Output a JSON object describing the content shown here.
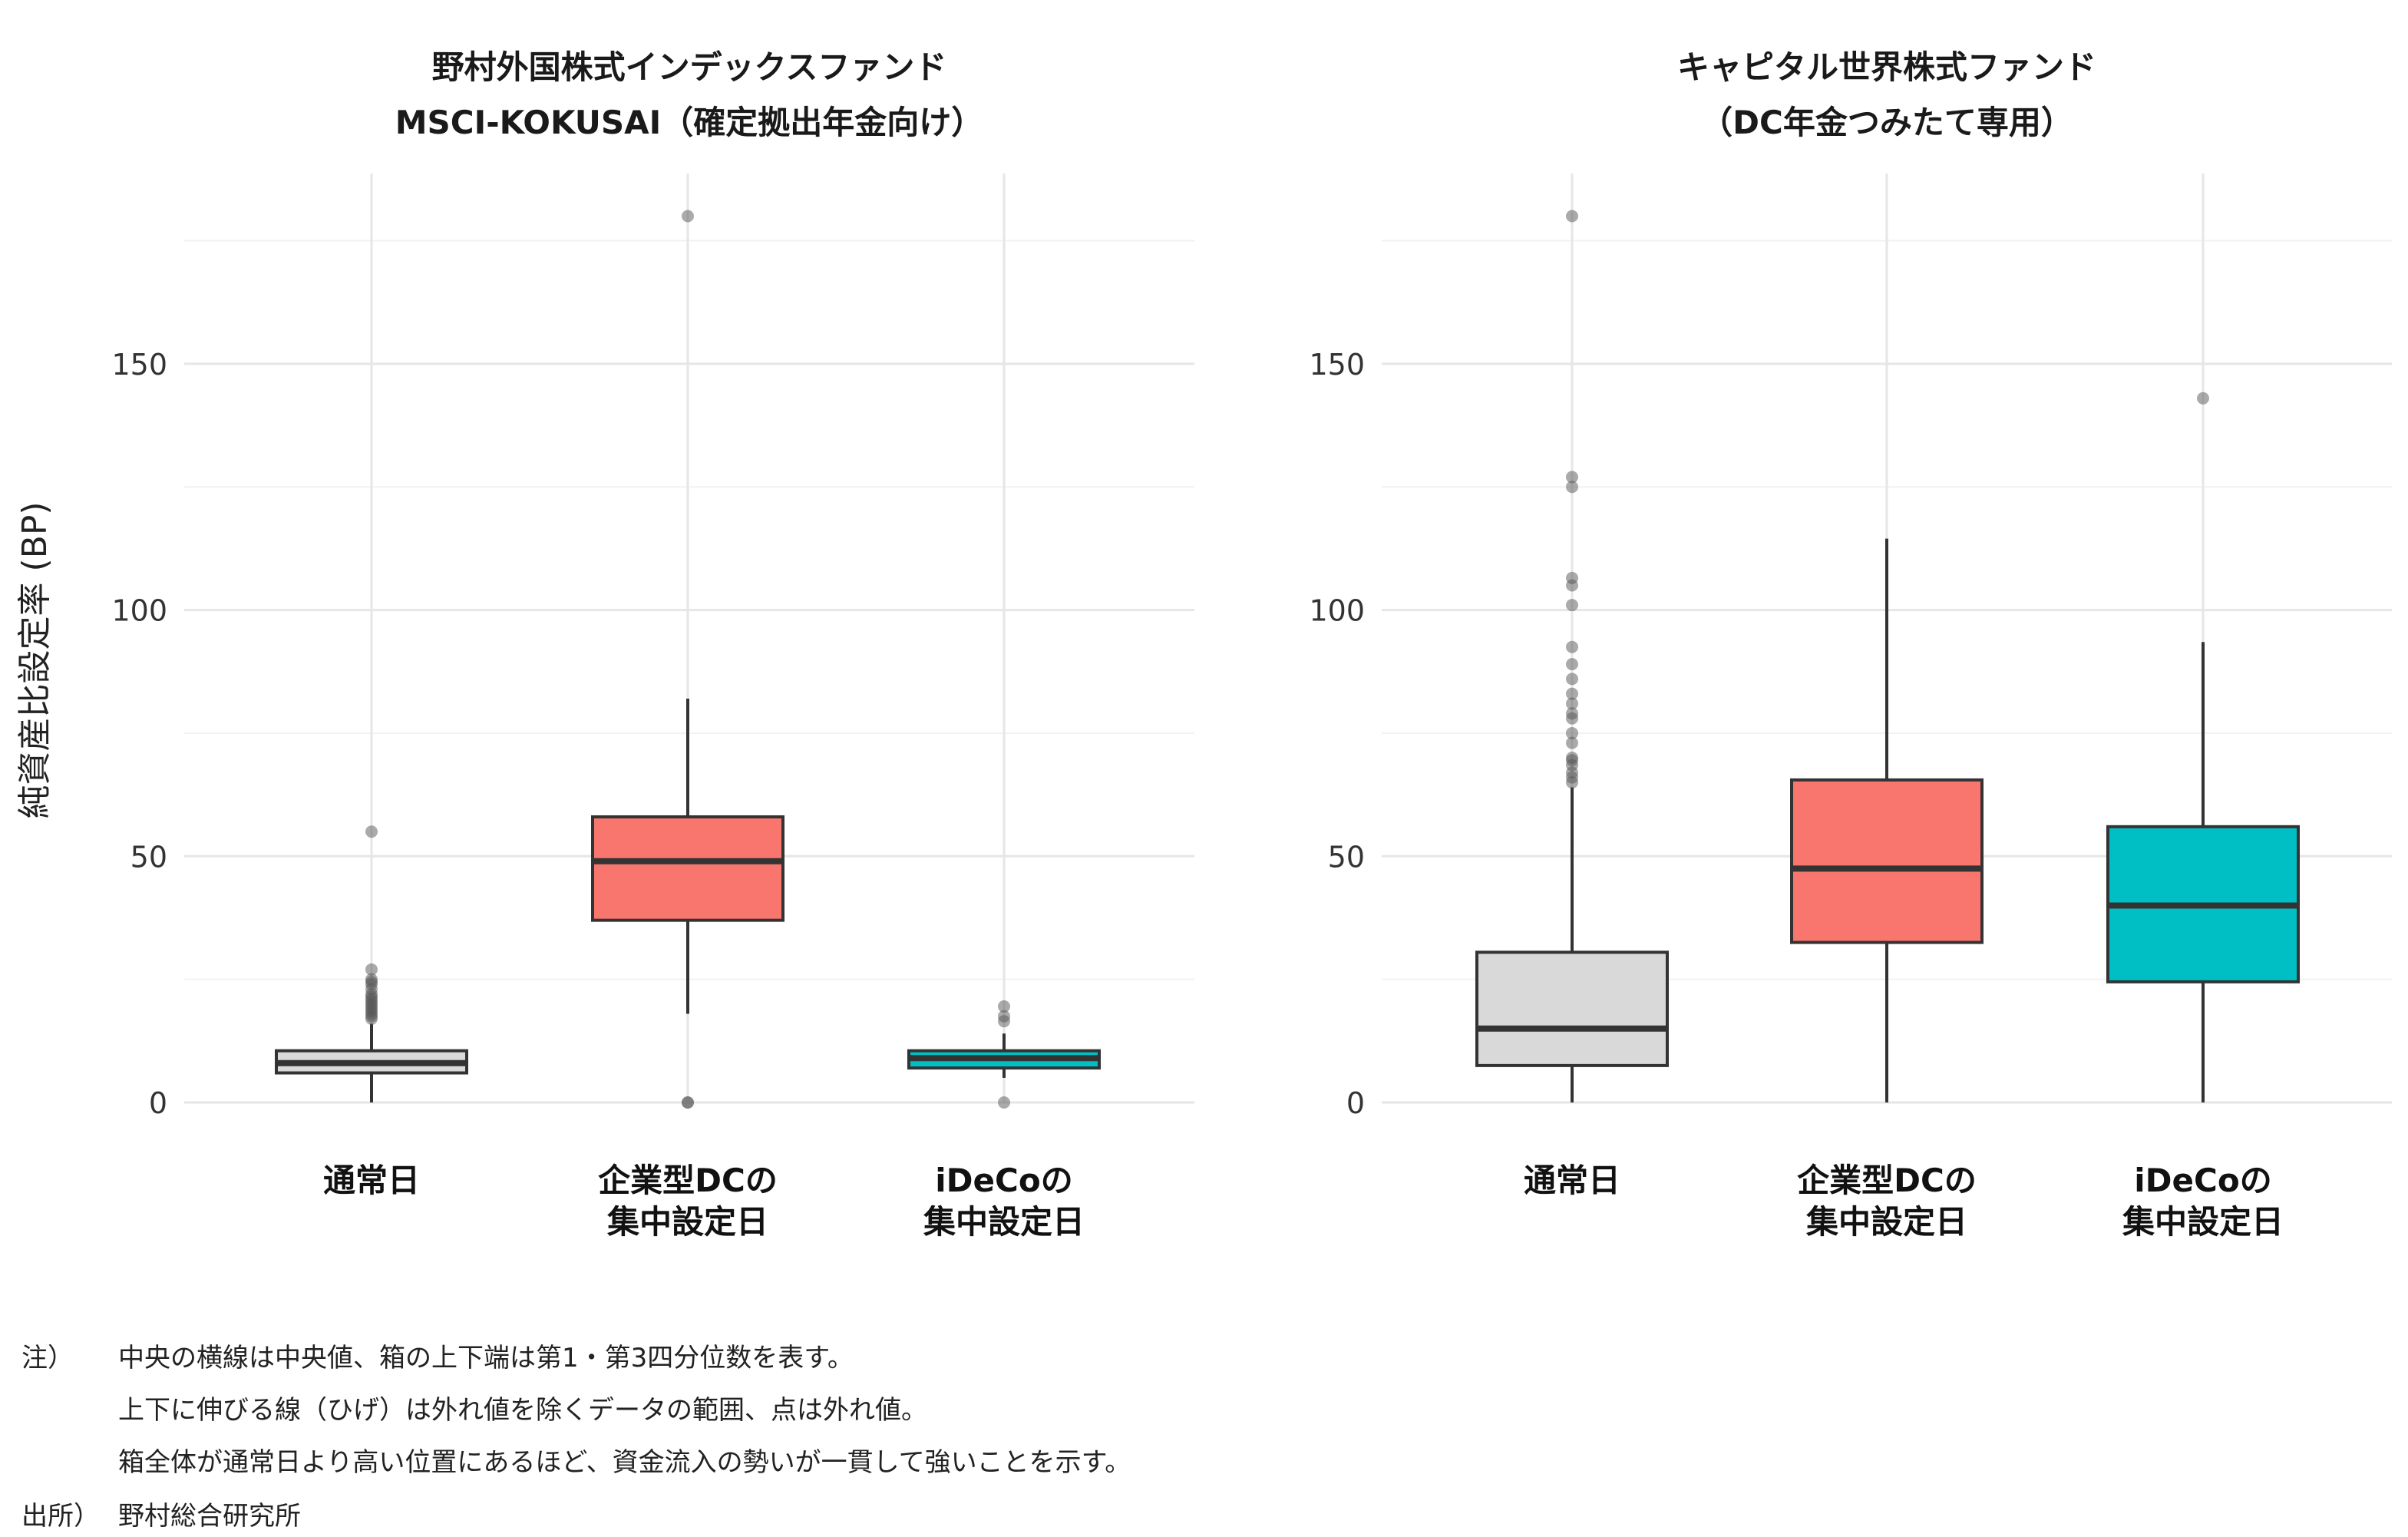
{
  "chart_data": [
    {
      "type": "box",
      "title": [
        "野村外国株式インデックスファンド",
        "MSCI-KOKUSAI（確定拠出年金向け）"
      ],
      "ylabel": "純資産比設定率 (BP)",
      "ylim": [
        0,
        180
      ],
      "yticks": [
        "0",
        "50",
        "100",
        "150"
      ],
      "ytick_values": [
        0,
        50,
        100,
        150
      ],
      "categories": [
        [
          "通常日"
        ],
        [
          "企業型DCの",
          "集中設定日"
        ],
        [
          "iDeCoの",
          "集中設定日"
        ]
      ],
      "boxes": [
        {
          "color": "#d9d9d9",
          "whisker_low": 0,
          "q1": 6,
          "median": 8,
          "q3": 10.5,
          "whisker_high": 16,
          "outliers": [
            17,
            17.5,
            18,
            18.5,
            19,
            19.5,
            20,
            20.5,
            21,
            21.5,
            22,
            23,
            24,
            24.5,
            25,
            27,
            55
          ]
        },
        {
          "color": "#f8766d",
          "whisker_low": 18,
          "q1": 37,
          "median": 49,
          "q3": 58,
          "whisker_high": 82,
          "outliers": [
            0,
            0,
            180
          ]
        },
        {
          "color": "#00bfc4",
          "whisker_low": 5,
          "q1": 7,
          "median": 9,
          "q3": 10.5,
          "whisker_high": 14,
          "outliers": [
            0,
            16.5,
            17.5,
            19.5
          ]
        }
      ]
    },
    {
      "type": "box",
      "title": [
        "キャピタル世界株式ファンド",
        "（DC年金つみたて専用）"
      ],
      "ylabel": "",
      "ylim": [
        0,
        180
      ],
      "yticks": [
        "0",
        "50",
        "100",
        "150"
      ],
      "ytick_values": [
        0,
        50,
        100,
        150
      ],
      "categories": [
        [
          "通常日"
        ],
        [
          "企業型DCの",
          "集中設定日"
        ],
        [
          "iDeCoの",
          "集中設定日"
        ]
      ],
      "boxes": [
        {
          "color": "#d9d9d9",
          "whisker_low": 0,
          "q1": 7.5,
          "median": 15,
          "q3": 30.5,
          "whisker_high": 64,
          "outliers": [
            65,
            66,
            67,
            68.5,
            69.5,
            70,
            73,
            75,
            78,
            79,
            81,
            83,
            86,
            89,
            92.5,
            101,
            105,
            106.5,
            125,
            127,
            180
          ]
        },
        {
          "color": "#f8766d",
          "whisker_low": 0,
          "q1": 32.5,
          "median": 47.5,
          "q3": 65.5,
          "whisker_high": 114.5,
          "outliers": []
        },
        {
          "color": "#00bfc4",
          "whisker_low": 0,
          "q1": 24.5,
          "median": 40,
          "q3": 56,
          "whisker_high": 93.5,
          "outliers": [
            143
          ]
        }
      ]
    }
  ],
  "notes": {
    "note_label": "注）",
    "lines": [
      "中央の横線は中央値、箱の上下端は第1・第3四分位数を表す。",
      "上下に伸びる線（ひげ）は外れ値を除くデータの範囲、点は外れ値。",
      "箱全体が通常日より高い位置にあるほど、資金流入の勢いが一貫して強いことを示す。"
    ],
    "source_label": "出所）",
    "source": "野村総合研究所"
  }
}
